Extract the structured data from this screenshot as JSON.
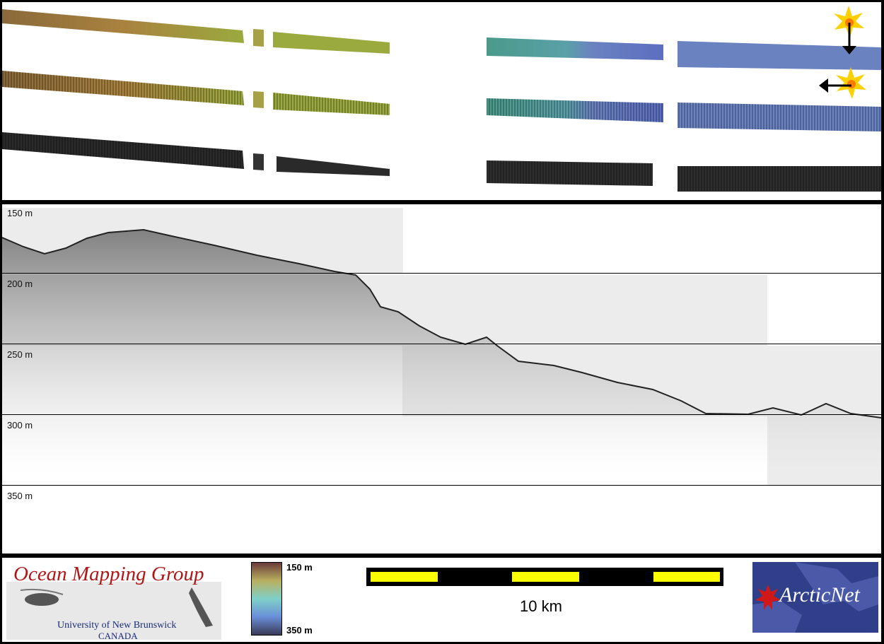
{
  "depth_axis": {
    "labels": [
      "150 m",
      "200 m",
      "250 m",
      "300 m",
      "350 m"
    ]
  },
  "legend": {
    "organization": {
      "title": "Ocean Mapping Group",
      "university": "University of New Brunswick",
      "country": "CANADA"
    },
    "colorbar": {
      "top_label": "150 m",
      "bottom_label": "350 m"
    },
    "scale": {
      "label": "10 km"
    },
    "partner_logo": {
      "text": "ArcticNet"
    }
  },
  "illumination_markers": [
    {
      "name": "sun-vertical",
      "direction": "down"
    },
    {
      "name": "sun-horizontal",
      "direction": "left"
    }
  ],
  "colors": {
    "frame": "#000000",
    "scale_fill": "#ffff00",
    "omg_red": "#b01818",
    "omg_blue": "#1a2b7a",
    "arcticnet_bg": "#2f3f8a"
  }
}
